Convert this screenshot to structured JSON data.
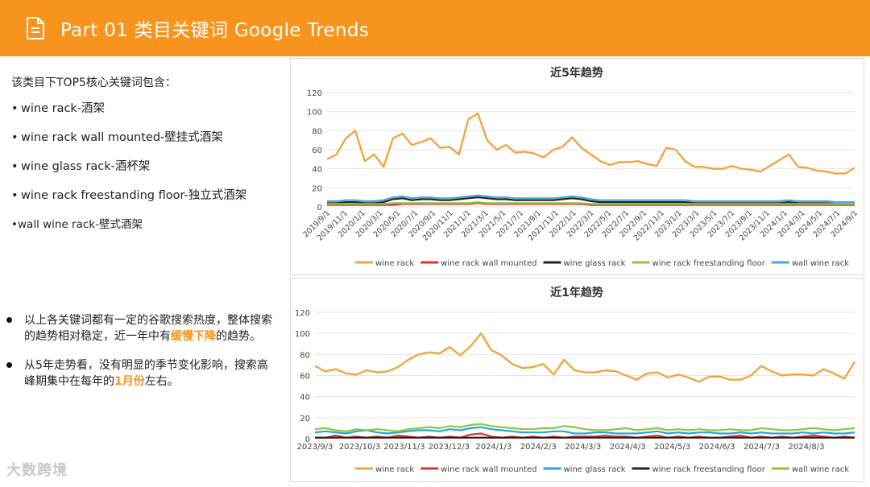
{
  "header": {
    "title": "Part 01 类目关键词 Google Trends",
    "icon": "document-icon",
    "color": "#f7941d"
  },
  "intro": "该类目下TOP5核心关键词包含：",
  "keywords": [
    {
      "bullet": "•",
      "text": "wine  rack-酒架"
    },
    {
      "bullet": "•",
      "text": "wine rack wall mounted-壁挂式酒架"
    },
    {
      "bullet": "•",
      "text": "wine glass rack-酒杯架"
    },
    {
      "bullet": "•",
      "text": "wine rack freestanding floor-独立式酒架"
    },
    {
      "bullet": "•",
      "text": "wall wine rack-壁式酒架"
    }
  ],
  "notes": [
    {
      "before": "以上各关键词都有一定的谷歌搜索热度，整体搜索的趋势相对稳定，近一年中有",
      "highlight": "缓慢下降",
      "after": "的趋势。"
    },
    {
      "before": "从5年走势看，没有明显的季节变化影响，搜索高峰期集中在每年的",
      "highlight": "1月份",
      "after": "左右。"
    }
  ],
  "watermark": "大数跨境",
  "chart_data": [
    {
      "type": "line",
      "title": "近5年趋势",
      "ylim": [
        0,
        120
      ],
      "yticks": [
        0,
        20,
        40,
        60,
        80,
        100,
        120
      ],
      "xlabels": [
        "2019/9/1",
        "2019/11/1",
        "2020/1/1",
        "2020/3/1",
        "2020/5/1",
        "2020/7/1",
        "2020/9/1",
        "2020/11/1",
        "2021/1/1",
        "2021/3/1",
        "2021/5/1",
        "2021/7/1",
        "2021/9/1",
        "2021/11/1",
        "2022/1/1",
        "2022/3/1",
        "2022/5/1",
        "2022/7/1",
        "2022/9/1",
        "2022/11/1",
        "2023/1/1",
        "2023/3/1",
        "2023/5/1",
        "2023/7/1",
        "2023/9/1",
        "2023/11/1",
        "2024/1/1",
        "2024/3/1",
        "2024/5/1",
        "2024/7/1",
        "2024/9/1"
      ],
      "series": [
        {
          "name": "wine rack",
          "color": "#f0a640",
          "values": [
            50,
            55,
            72,
            80,
            48,
            55,
            42,
            72,
            77,
            65,
            68,
            72,
            62,
            63,
            55,
            92,
            98,
            70,
            60,
            65,
            57,
            58,
            56,
            52,
            60,
            63,
            73,
            62,
            55,
            48,
            44,
            47,
            47,
            48,
            45,
            43,
            62,
            60,
            48,
            42,
            42,
            40,
            40,
            43,
            40,
            39,
            37,
            43,
            49,
            55,
            42,
            41,
            38,
            37,
            35,
            35,
            41
          ]
        },
        {
          "name": "wine rack wall mounted",
          "color": "#e03030",
          "values": [
            2,
            2,
            2,
            2,
            2,
            2,
            2,
            2,
            3,
            3,
            3,
            3,
            3,
            3,
            3,
            3,
            4,
            3,
            3,
            3,
            3,
            3,
            3,
            3,
            3,
            3,
            3,
            3,
            2,
            2,
            2,
            2,
            2,
            2,
            2,
            2,
            2,
            2,
            2,
            2,
            2,
            2,
            2,
            2,
            2,
            2,
            2,
            2,
            2,
            2,
            2,
            2,
            2,
            2,
            2,
            2,
            2
          ]
        },
        {
          "name": "wine glass rack",
          "color": "#222222",
          "values": [
            4,
            4,
            5,
            5,
            4,
            4,
            5,
            8,
            9,
            7,
            8,
            8,
            7,
            7,
            8,
            9,
            10,
            9,
            8,
            8,
            7,
            7,
            7,
            7,
            7,
            8,
            9,
            8,
            6,
            5,
            5,
            5,
            5,
            5,
            5,
            5,
            5,
            5,
            5,
            4,
            4,
            4,
            4,
            4,
            4,
            4,
            4,
            4,
            4,
            5,
            4,
            4,
            4,
            4,
            3,
            3,
            3
          ]
        },
        {
          "name": "wine rack freestanding floor",
          "color": "#8dc63f",
          "values": [
            3,
            3,
            3,
            3,
            3,
            3,
            3,
            4,
            4,
            4,
            4,
            4,
            4,
            4,
            4,
            4,
            5,
            4,
            4,
            4,
            4,
            4,
            4,
            4,
            4,
            4,
            4,
            4,
            3,
            3,
            3,
            3,
            3,
            3,
            3,
            3,
            3,
            3,
            3,
            3,
            3,
            3,
            3,
            3,
            3,
            3,
            3,
            3,
            3,
            3,
            3,
            3,
            3,
            3,
            3,
            3,
            3
          ]
        },
        {
          "name": "wall wine rack",
          "color": "#4aa8d8",
          "values": [
            6,
            6,
            7,
            7,
            6,
            6,
            7,
            10,
            11,
            9,
            10,
            10,
            9,
            9,
            10,
            11,
            12,
            11,
            10,
            10,
            9,
            9,
            9,
            9,
            9,
            10,
            11,
            10,
            8,
            7,
            7,
            7,
            7,
            7,
            7,
            7,
            7,
            7,
            7,
            6,
            6,
            6,
            6,
            6,
            6,
            6,
            6,
            6,
            6,
            7,
            6,
            6,
            6,
            6,
            5,
            5,
            5
          ]
        }
      ]
    },
    {
      "type": "line",
      "title": "近1年趋势",
      "ylim": [
        0,
        120
      ],
      "yticks": [
        0,
        20,
        40,
        60,
        80,
        100,
        120
      ],
      "xlabels": [
        "2023/9/3",
        "2023/10/3",
        "2023/11/3",
        "2023/12/3",
        "2024/1/3",
        "2024/2/3",
        "2024/3/3",
        "2024/4/3",
        "2024/5/3",
        "2024/6/3",
        "2024/7/3",
        "2024/8/3"
      ],
      "series": [
        {
          "name": "wine rack",
          "color": "#f0a640",
          "values": [
            69,
            64,
            66,
            62,
            61,
            65,
            63,
            64,
            68,
            75,
            80,
            82,
            81,
            87,
            79,
            88,
            100,
            84,
            79,
            71,
            67,
            68,
            71,
            61,
            75,
            65,
            63,
            63,
            65,
            64,
            60,
            56,
            62,
            63,
            58,
            61,
            58,
            54,
            59,
            59,
            56,
            56,
            60,
            69,
            64,
            60,
            61,
            61,
            60,
            66,
            62,
            57,
            73
          ]
        },
        {
          "name": "wine rack wall mounted",
          "color": "#e03030",
          "values": [
            1,
            1,
            3,
            1,
            2,
            1,
            2,
            1,
            3,
            2,
            1,
            2,
            1,
            2,
            1,
            4,
            5,
            2,
            1,
            2,
            1,
            2,
            1,
            2,
            1,
            2,
            2,
            2,
            3,
            2,
            2,
            1,
            2,
            3,
            1,
            2,
            1,
            2,
            1,
            1,
            2,
            3,
            1,
            2,
            1,
            2,
            1,
            2,
            3,
            2,
            1,
            2,
            1
          ]
        },
        {
          "name": "wine glass rack",
          "color": "#21a7de",
          "values": [
            6,
            7,
            6,
            5,
            7,
            8,
            6,
            5,
            6,
            7,
            8,
            8,
            7,
            9,
            8,
            10,
            11,
            9,
            8,
            7,
            6,
            6,
            6,
            7,
            7,
            5,
            5,
            6,
            6,
            5,
            5,
            5,
            6,
            7,
            5,
            6,
            5,
            6,
            6,
            5,
            5,
            6,
            5,
            6,
            5,
            5,
            5,
            6,
            5,
            6,
            5,
            5,
            6
          ]
        },
        {
          "name": "wine rack freestanding floor",
          "color": "#222222",
          "values": [
            1,
            1,
            1,
            1,
            1,
            1,
            1,
            1,
            1,
            1,
            1,
            1,
            1,
            1,
            1,
            1,
            1,
            1,
            1,
            1,
            1,
            1,
            1,
            1,
            1,
            1,
            1,
            1,
            1,
            1,
            1,
            1,
            1,
            1,
            1,
            1,
            1,
            1,
            1,
            1,
            1,
            1,
            1,
            1,
            1,
            1,
            1,
            1,
            1,
            1,
            1,
            1,
            1
          ]
        },
        {
          "name": "wall wine rack",
          "color": "#8dc63f",
          "values": [
            9,
            10,
            8,
            7,
            9,
            8,
            9,
            8,
            7,
            9,
            10,
            11,
            10,
            12,
            11,
            13,
            14,
            12,
            11,
            10,
            9,
            9,
            10,
            10,
            12,
            11,
            9,
            8,
            8,
            9,
            10,
            8,
            9,
            10,
            8,
            9,
            8,
            9,
            8,
            8,
            9,
            8,
            8,
            10,
            9,
            8,
            8,
            9,
            10,
            9,
            8,
            9,
            10
          ]
        }
      ]
    }
  ]
}
